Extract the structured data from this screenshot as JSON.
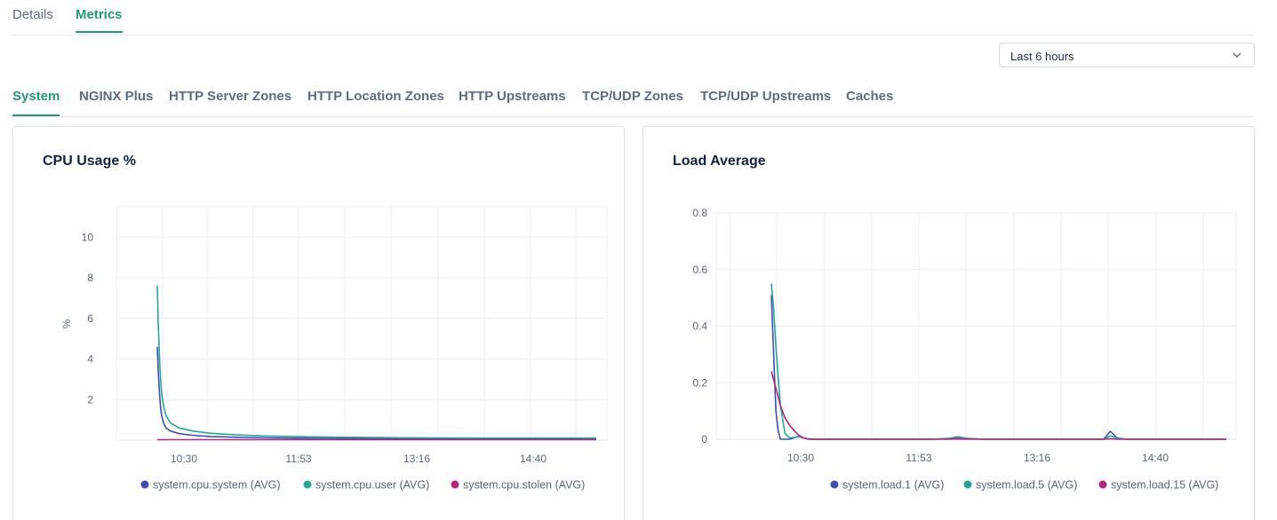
{
  "top_tabs": [
    {
      "label": "Details",
      "active": false
    },
    {
      "label": "Metrics",
      "active": true
    }
  ],
  "time_range": {
    "selected": "Last 6 hours"
  },
  "sub_tabs": [
    {
      "label": "System",
      "active": true
    },
    {
      "label": "NGINX Plus",
      "active": false
    },
    {
      "label": "HTTP Server Zones",
      "active": false
    },
    {
      "label": "HTTP Location Zones",
      "active": false
    },
    {
      "label": "HTTP Upstreams",
      "active": false
    },
    {
      "label": "TCP/UDP Zones",
      "active": false
    },
    {
      "label": "TCP/UDP Upstreams",
      "active": false
    },
    {
      "label": "Caches",
      "active": false
    }
  ],
  "colors": {
    "accent": "#1f9c73",
    "series_blue": "#3f4db8",
    "series_teal": "#1ea79a",
    "series_magenta": "#b5237e"
  },
  "chart_data": [
    {
      "type": "line",
      "title": "CPU Usage %",
      "ylabel": "%",
      "xlabel": "",
      "x_ticks": [
        "10:30",
        "11:53",
        "13:16",
        "14:40"
      ],
      "y_ticks": [
        "2",
        "4",
        "6",
        "8",
        "10"
      ],
      "ylim": [
        0,
        11.5
      ],
      "grid": true,
      "legend_position": "bottom",
      "x": [
        0,
        0.25,
        0.5,
        0.75,
        1,
        1.5,
        2,
        3,
        5,
        8,
        12,
        18,
        25,
        35,
        45,
        55,
        65,
        75,
        85,
        100
      ],
      "series": [
        {
          "name": "system.cpu.system (AVG)",
          "color": "#3f4db8",
          "values": [
            4.6,
            3.3,
            2.3,
            1.6,
            1.2,
            0.8,
            0.6,
            0.45,
            0.32,
            0.24,
            0.18,
            0.14,
            0.11,
            0.09,
            0.08,
            0.07,
            0.07,
            0.07,
            0.07,
            0.07
          ]
        },
        {
          "name": "system.cpu.user (AVG)",
          "color": "#1ea79a",
          "values": [
            7.6,
            5.6,
            4.0,
            3.0,
            2.3,
            1.6,
            1.2,
            0.85,
            0.6,
            0.45,
            0.34,
            0.26,
            0.2,
            0.16,
            0.14,
            0.12,
            0.11,
            0.1,
            0.1,
            0.1
          ]
        },
        {
          "name": "system.cpu.stolen (AVG)",
          "color": "#b5237e",
          "values": [
            0.02,
            0.02,
            0.02,
            0.02,
            0.02,
            0.02,
            0.02,
            0.02,
            0.02,
            0.02,
            0.02,
            0.02,
            0.02,
            0.02,
            0.02,
            0.02,
            0.02,
            0.02,
            0.02,
            0.02
          ]
        }
      ]
    },
    {
      "type": "line",
      "title": "Load Average",
      "ylabel": "",
      "xlabel": "",
      "x_ticks": [
        "10:30",
        "11:53",
        "13:16",
        "14:40"
      ],
      "y_ticks": [
        "0",
        "0.2",
        "0.4",
        "0.6",
        "0.8"
      ],
      "ylim": [
        0,
        0.8
      ],
      "grid": true,
      "legend_position": "bottom",
      "x": [
        0,
        0.5,
        1,
        1.5,
        2,
        3,
        4,
        5,
        6,
        7,
        8,
        10,
        12,
        15,
        20,
        35,
        39,
        41,
        43,
        47,
        60,
        73,
        74.5,
        76,
        78,
        90,
        100
      ],
      "series": [
        {
          "name": "system.load.1 (AVG)",
          "color": "#3f4db8",
          "values": [
            0.51,
            0.3,
            0.1,
            0.03,
            0,
            0,
            0,
            0.005,
            0.01,
            0.005,
            0,
            0,
            0,
            0,
            0,
            0,
            0.003,
            0.008,
            0.003,
            0,
            0,
            0,
            0.028,
            0.005,
            0,
            0,
            0
          ]
        },
        {
          "name": "system.load.5 (AVG)",
          "color": "#1ea79a",
          "values": [
            0.55,
            0.46,
            0.33,
            0.22,
            0.12,
            0.02,
            0.005,
            0.006,
            0.01,
            0.005,
            0,
            0,
            0,
            0,
            0,
            0,
            0.002,
            0.005,
            0.002,
            0,
            0,
            0,
            0.012,
            0.004,
            0,
            0,
            0
          ]
        },
        {
          "name": "system.load.15 (AVG)",
          "color": "#b5237e",
          "values": [
            0.24,
            0.21,
            0.18,
            0.15,
            0.12,
            0.075,
            0.05,
            0.03,
            0.015,
            0.005,
            0.002,
            0,
            0,
            0,
            0,
            0,
            0,
            0.001,
            0,
            0,
            0,
            0,
            0.002,
            0,
            0,
            0,
            0
          ]
        }
      ]
    }
  ]
}
